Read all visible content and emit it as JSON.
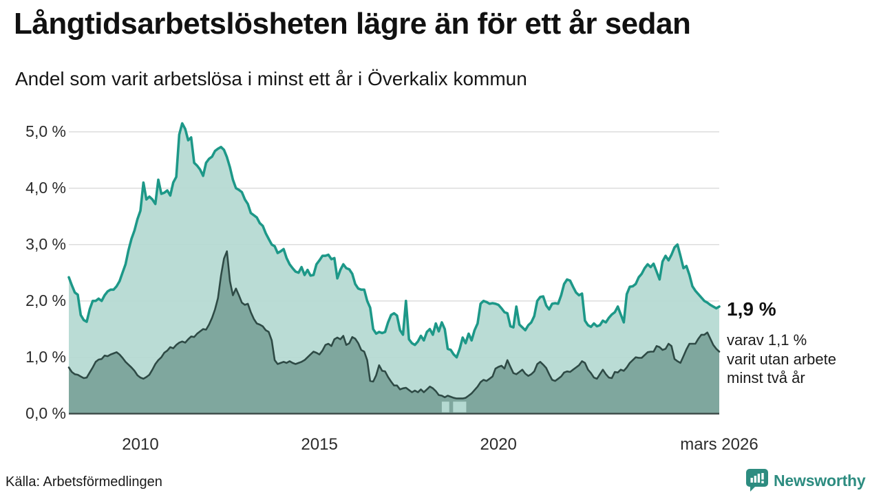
{
  "header": {
    "title": "Långtidsarbetslösheten lägre än för ett år sedan",
    "subtitle": "Andel som varit arbetslösa i minst ett år i Överkalix kommun"
  },
  "chart_data": {
    "type": "area",
    "x_start": "2008-01",
    "x_end": "2026-03",
    "x_ticks": [
      {
        "label": "2010",
        "month_index": 24
      },
      {
        "label": "2015",
        "month_index": 84
      },
      {
        "label": "2020",
        "month_index": 144
      },
      {
        "label": "mars 2026",
        "month_index": 218
      }
    ],
    "y_ticks": [
      {
        "label": "0,0 %",
        "value": 0
      },
      {
        "label": "1,0 %",
        "value": 1
      },
      {
        "label": "2,0 %",
        "value": 2
      },
      {
        "label": "3,0 %",
        "value": 3
      },
      {
        "label": "4,0 %",
        "value": 4
      },
      {
        "label": "5,0 %",
        "value": 5
      }
    ],
    "ylim": [
      0,
      5.4
    ],
    "grid": true,
    "colors": {
      "line_1yr": "#1d9888",
      "fill_1yr": "#b4d9d1",
      "line_2yr": "#2e4a45",
      "fill_2yr": "#7da49b",
      "gridline": "#dcdcdc",
      "axis": "#3b4a47"
    },
    "series": [
      {
        "name": "Andel arbetslösa minst ett år",
        "end_value": 1.9,
        "values": [
          2.42,
          2.28,
          2.15,
          2.11,
          1.75,
          1.66,
          1.63,
          1.85,
          2.0,
          2.0,
          2.04,
          2.0,
          2.1,
          2.17,
          2.2,
          2.2,
          2.26,
          2.35,
          2.5,
          2.65,
          2.9,
          3.1,
          3.25,
          3.45,
          3.6,
          4.1,
          3.8,
          3.85,
          3.8,
          3.72,
          4.15,
          3.9,
          3.92,
          3.96,
          3.87,
          4.1,
          4.2,
          4.95,
          5.15,
          5.05,
          4.85,
          4.9,
          4.45,
          4.4,
          4.33,
          4.22,
          4.45,
          4.52,
          4.56,
          4.66,
          4.7,
          4.73,
          4.68,
          4.55,
          4.37,
          4.15,
          4.0,
          3.97,
          3.93,
          3.8,
          3.72,
          3.56,
          3.52,
          3.48,
          3.38,
          3.33,
          3.2,
          3.1,
          3.0,
          2.97,
          2.85,
          2.88,
          2.92,
          2.76,
          2.65,
          2.58,
          2.52,
          2.5,
          2.6,
          2.46,
          2.55,
          2.45,
          2.46,
          2.65,
          2.72,
          2.8,
          2.8,
          2.82,
          2.74,
          2.76,
          2.4,
          2.55,
          2.65,
          2.58,
          2.56,
          2.48,
          2.3,
          2.22,
          2.2,
          2.2,
          2.0,
          1.88,
          1.5,
          1.42,
          1.45,
          1.43,
          1.45,
          1.62,
          1.75,
          1.78,
          1.74,
          1.48,
          1.4,
          2.0,
          1.32,
          1.25,
          1.22,
          1.28,
          1.38,
          1.3,
          1.45,
          1.5,
          1.4,
          1.6,
          1.46,
          1.62,
          1.5,
          1.15,
          1.13,
          1.05,
          1.0,
          1.15,
          1.35,
          1.25,
          1.42,
          1.3,
          1.48,
          1.6,
          1.95,
          2.0,
          1.98,
          1.95,
          1.96,
          1.95,
          1.93,
          1.87,
          1.8,
          1.78,
          1.55,
          1.53,
          1.9,
          1.58,
          1.53,
          1.48,
          1.57,
          1.62,
          1.73,
          2.0,
          2.07,
          2.08,
          1.92,
          1.85,
          1.95,
          1.96,
          1.95,
          2.1,
          2.3,
          2.38,
          2.36,
          2.25,
          2.15,
          2.1,
          2.13,
          1.65,
          1.57,
          1.54,
          1.6,
          1.55,
          1.57,
          1.65,
          1.62,
          1.7,
          1.76,
          1.8,
          1.9,
          1.76,
          1.62,
          2.12,
          2.25,
          2.26,
          2.3,
          2.42,
          2.48,
          2.58,
          2.65,
          2.6,
          2.66,
          2.52,
          2.38,
          2.7,
          2.8,
          2.72,
          2.82,
          2.95,
          3.0,
          2.8,
          2.58,
          2.62,
          2.46,
          2.26,
          2.18,
          2.12,
          2.06,
          2.0,
          1.97,
          1.93,
          1.9,
          1.87,
          1.9
        ]
      },
      {
        "name": "Andel arbetslösa minst två år",
        "end_value": 1.1,
        "fill_gap_month_ranges": [
          [
            125,
            127.5
          ],
          [
            128.8,
            133.2
          ]
        ],
        "values": [
          0.82,
          0.74,
          0.7,
          0.69,
          0.66,
          0.63,
          0.64,
          0.73,
          0.82,
          0.92,
          0.96,
          0.97,
          1.03,
          1.02,
          1.05,
          1.07,
          1.09,
          1.05,
          0.99,
          0.92,
          0.87,
          0.82,
          0.76,
          0.68,
          0.64,
          0.62,
          0.65,
          0.69,
          0.78,
          0.88,
          0.95,
          1.0,
          1.08,
          1.12,
          1.18,
          1.16,
          1.22,
          1.26,
          1.28,
          1.26,
          1.32,
          1.37,
          1.36,
          1.42,
          1.46,
          1.5,
          1.49,
          1.58,
          1.7,
          1.85,
          2.05,
          2.45,
          2.75,
          2.88,
          2.35,
          2.1,
          2.22,
          2.1,
          1.97,
          1.93,
          1.95,
          1.8,
          1.68,
          1.6,
          1.58,
          1.55,
          1.48,
          1.45,
          1.3,
          0.95,
          0.88,
          0.9,
          0.92,
          0.9,
          0.93,
          0.9,
          0.88,
          0.9,
          0.92,
          0.95,
          1.0,
          1.05,
          1.1,
          1.08,
          1.05,
          1.12,
          1.22,
          1.24,
          1.2,
          1.32,
          1.35,
          1.32,
          1.38,
          1.22,
          1.25,
          1.36,
          1.33,
          1.25,
          1.13,
          1.1,
          0.95,
          0.58,
          0.57,
          0.68,
          0.86,
          0.76,
          0.75,
          0.65,
          0.57,
          0.5,
          0.5,
          0.43,
          0.45,
          0.46,
          0.42,
          0.38,
          0.41,
          0.38,
          0.43,
          0.38,
          0.43,
          0.48,
          0.45,
          0.4,
          0.33,
          0.32,
          0.29,
          0.32,
          0.3,
          0.28,
          0.27,
          0.27,
          0.27,
          0.28,
          0.32,
          0.36,
          0.42,
          0.48,
          0.56,
          0.6,
          0.58,
          0.62,
          0.66,
          0.8,
          0.83,
          0.85,
          0.8,
          0.95,
          0.83,
          0.72,
          0.7,
          0.74,
          0.78,
          0.71,
          0.67,
          0.7,
          0.75,
          0.88,
          0.92,
          0.87,
          0.81,
          0.7,
          0.6,
          0.58,
          0.62,
          0.66,
          0.73,
          0.75,
          0.74,
          0.78,
          0.82,
          0.86,
          0.93,
          0.9,
          0.78,
          0.72,
          0.64,
          0.62,
          0.7,
          0.78,
          0.7,
          0.64,
          0.63,
          0.74,
          0.73,
          0.78,
          0.76,
          0.82,
          0.9,
          0.95,
          1.0,
          0.99,
          0.99,
          1.04,
          1.09,
          1.1,
          1.1,
          1.2,
          1.18,
          1.13,
          1.15,
          1.24,
          1.2,
          0.97,
          0.93,
          0.9,
          1.02,
          1.14,
          1.24,
          1.24,
          1.24,
          1.33,
          1.4,
          1.4,
          1.44,
          1.33,
          1.22,
          1.15,
          1.1
        ]
      }
    ],
    "annotations": {
      "end_value_label": "1,9 %",
      "sub_label_lines": [
        "varav 1,1 %",
        "varit utan arbete",
        "minst två år"
      ]
    }
  },
  "footer": {
    "source": "Källa: Arbetsförmedlingen",
    "brand": "Newsworthy"
  }
}
